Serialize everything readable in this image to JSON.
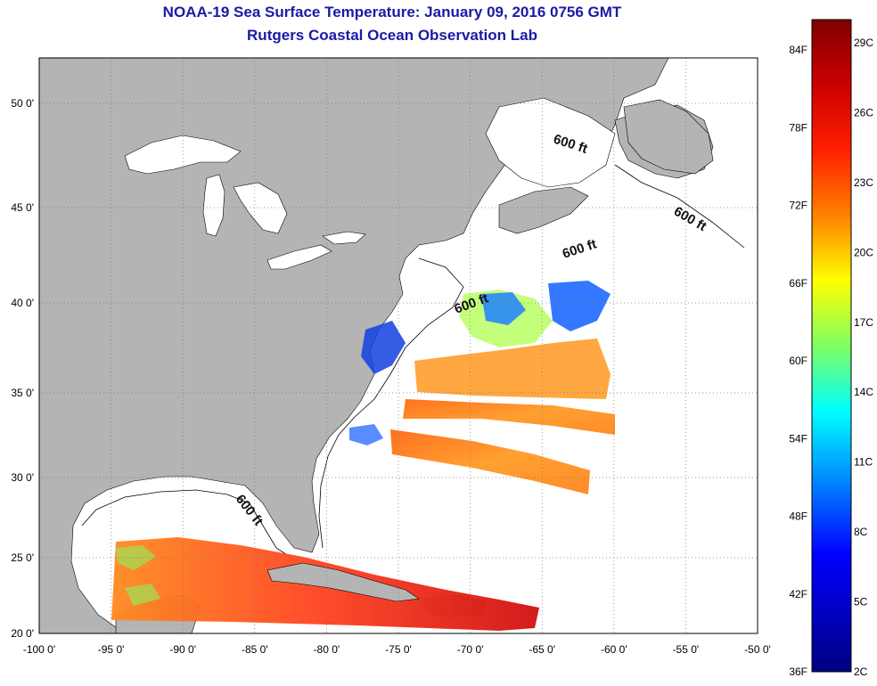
{
  "title": "NOAA-19 Sea Surface Temperature:  January 09, 2016 0756 GMT",
  "subtitle": "Rutgers Coastal Ocean Observation Lab",
  "map": {
    "lon_labels": [
      "-100 0'",
      "-95 0'",
      "-90 0'",
      "-85 0'",
      "-80 0'",
      "-75 0'",
      "-70 0'",
      "-65 0'",
      "-60 0'",
      "-55 0'",
      "-50 0'"
    ],
    "lat_labels": [
      "50 0'",
      "45 0'",
      "40 0'",
      "35 0'",
      "30 0'",
      "25 0'",
      "20 0'"
    ],
    "isobath_labels": [
      "600 ft",
      "600 ft",
      "600 ft",
      "600 ft",
      "600 ft"
    ],
    "land_color": "#b4b4b4",
    "water_color": "#ffffff"
  },
  "colorbar": {
    "fahrenheit_labels": [
      "84F",
      "78F",
      "72F",
      "66F",
      "60F",
      "54F",
      "48F",
      "42F",
      "36F"
    ],
    "celsius_labels": [
      "29C",
      "26C",
      "23C",
      "20C",
      "17C",
      "14C",
      "11C",
      "8C",
      "5C",
      "2C"
    ],
    "colors": [
      "#800000",
      "#ff0000",
      "#ff8000",
      "#ffff00",
      "#80ff80",
      "#00ffff",
      "#0080ff",
      "#0000ff",
      "#000080"
    ]
  }
}
